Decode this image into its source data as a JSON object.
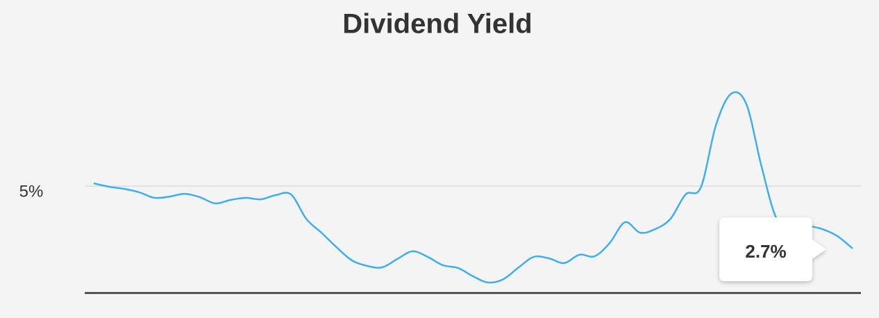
{
  "chart_data": {
    "type": "line",
    "title": "Dividend Yield",
    "values": [
      5.13,
      4.97,
      4.87,
      4.71,
      4.45,
      4.51,
      4.64,
      4.48,
      4.19,
      4.35,
      4.45,
      4.38,
      4.58,
      4.61,
      3.47,
      2.82,
      2.14,
      1.53,
      1.27,
      1.2,
      1.59,
      1.95,
      1.69,
      1.3,
      1.17,
      0.78,
      0.49,
      0.65,
      1.2,
      1.69,
      1.62,
      1.4,
      1.79,
      1.72,
      2.34,
      3.31,
      2.82,
      2.99,
      3.47,
      4.61,
      4.94,
      7.86,
      9.32,
      8.83,
      5.91,
      3.47,
      3.25,
      3.15,
      2.99,
      2.66,
      2.08
    ],
    "color": "#3daef0",
    "ylim": [
      0,
      10
    ],
    "yticks": [
      {
        "value": 5,
        "label": "5%"
      }
    ],
    "grid": true,
    "annotation": "2.7%"
  }
}
